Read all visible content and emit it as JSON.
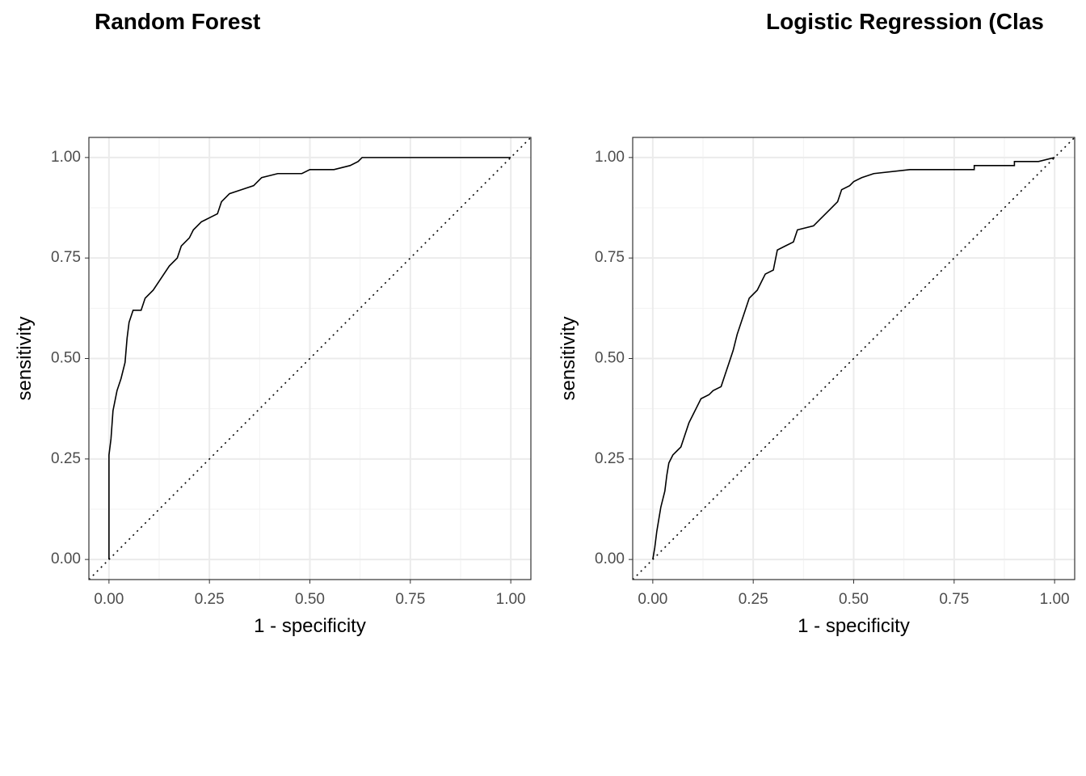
{
  "chart_data": [
    {
      "type": "line",
      "title": "Random Forest",
      "xlabel": "1 - specificity",
      "ylabel": "sensitivity",
      "color": "#000000",
      "grid": true,
      "xlim": [
        -0.05,
        1.05
      ],
      "ylim": [
        -0.05,
        1.05
      ],
      "xticks": [
        {
          "value": 0,
          "label": "0.00"
        },
        {
          "value": 0.25,
          "label": "0.25"
        },
        {
          "value": 0.5,
          "label": "0.50"
        },
        {
          "value": 0.75,
          "label": "0.75"
        },
        {
          "value": 1,
          "label": "1.00"
        }
      ],
      "yticks": [
        {
          "value": 0,
          "label": "0.00"
        },
        {
          "value": 0.25,
          "label": "0.25"
        },
        {
          "value": 0.5,
          "label": "0.50"
        },
        {
          "value": 0.75,
          "label": "0.75"
        },
        {
          "value": 1,
          "label": "1.00"
        }
      ],
      "xminor": [
        0.125,
        0.375,
        0.625,
        0.875
      ],
      "yminor": [
        0.125,
        0.375,
        0.625,
        0.875
      ],
      "x": [
        0,
        0,
        0.005,
        0.01,
        0.02,
        0.03,
        0.04,
        0.045,
        0.05,
        0.06,
        0.08,
        0.09,
        0.11,
        0.13,
        0.15,
        0.17,
        0.18,
        0.2,
        0.21,
        0.23,
        0.25,
        0.27,
        0.28,
        0.3,
        0.33,
        0.36,
        0.38,
        0.42,
        0.48,
        0.5,
        0.56,
        0.6,
        0.62,
        0.63,
        1
      ],
      "values": [
        0,
        0.26,
        0.3,
        0.37,
        0.42,
        0.45,
        0.49,
        0.55,
        0.59,
        0.62,
        0.62,
        0.65,
        0.67,
        0.7,
        0.73,
        0.75,
        0.78,
        0.8,
        0.82,
        0.84,
        0.85,
        0.86,
        0.89,
        0.91,
        0.92,
        0.93,
        0.95,
        0.96,
        0.96,
        0.97,
        0.97,
        0.98,
        0.99,
        1,
        1
      ]
    },
    {
      "type": "line",
      "title": "Logistic Regression (Clas",
      "xlabel": "1 - specificity",
      "ylabel": "sensitivity",
      "color": "#000000",
      "grid": true,
      "xlim": [
        -0.05,
        1.05
      ],
      "ylim": [
        -0.05,
        1.05
      ],
      "xticks": [
        {
          "value": 0,
          "label": "0.00"
        },
        {
          "value": 0.25,
          "label": "0.25"
        },
        {
          "value": 0.5,
          "label": "0.50"
        },
        {
          "value": 0.75,
          "label": "0.75"
        },
        {
          "value": 1,
          "label": "1.00"
        }
      ],
      "yticks": [
        {
          "value": 0,
          "label": "0.00"
        },
        {
          "value": 0.25,
          "label": "0.25"
        },
        {
          "value": 0.5,
          "label": "0.50"
        },
        {
          "value": 0.75,
          "label": "0.75"
        },
        {
          "value": 1,
          "label": "1.00"
        }
      ],
      "xminor": [
        0.125,
        0.375,
        0.625,
        0.875
      ],
      "yminor": [
        0.125,
        0.375,
        0.625,
        0.875
      ],
      "x": [
        0,
        0.005,
        0.01,
        0.015,
        0.02,
        0.03,
        0.035,
        0.04,
        0.05,
        0.06,
        0.07,
        0.08,
        0.09,
        0.1,
        0.11,
        0.12,
        0.14,
        0.15,
        0.17,
        0.18,
        0.19,
        0.2,
        0.21,
        0.22,
        0.23,
        0.24,
        0.26,
        0.27,
        0.28,
        0.3,
        0.31,
        0.33,
        0.35,
        0.36,
        0.4,
        0.42,
        0.44,
        0.46,
        0.47,
        0.49,
        0.5,
        0.52,
        0.55,
        0.64,
        0.8,
        0.8,
        0.9,
        0.9,
        0.96,
        1
      ],
      "values": [
        0,
        0.03,
        0.07,
        0.1,
        0.13,
        0.17,
        0.21,
        0.24,
        0.26,
        0.27,
        0.28,
        0.31,
        0.34,
        0.36,
        0.38,
        0.4,
        0.41,
        0.42,
        0.43,
        0.46,
        0.49,
        0.52,
        0.56,
        0.59,
        0.62,
        0.65,
        0.67,
        0.69,
        0.71,
        0.72,
        0.77,
        0.78,
        0.79,
        0.82,
        0.83,
        0.85,
        0.87,
        0.89,
        0.92,
        0.93,
        0.94,
        0.95,
        0.96,
        0.97,
        0.97,
        0.98,
        0.98,
        0.99,
        0.99,
        1
      ]
    }
  ]
}
